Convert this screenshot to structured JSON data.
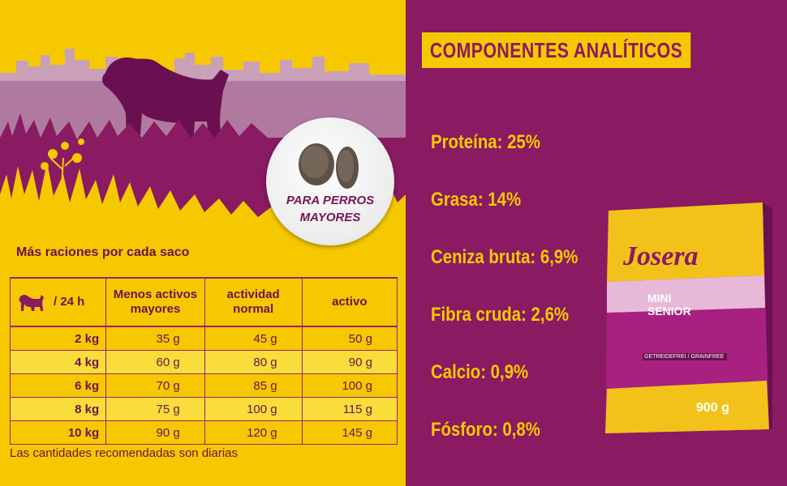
{
  "badge": {
    "line1": "PARA PERROS",
    "line2": "MAYORES"
  },
  "feeding": {
    "title": "Más raciones por cada saco",
    "per_day": "/ 24 h",
    "columns": [
      "Menos activos\nmayores",
      "actividad\nnormal",
      "activo"
    ],
    "rows": [
      {
        "weight": "2 kg",
        "values": [
          "35 g",
          "45 g",
          "50 g"
        ]
      },
      {
        "weight": "4 kg",
        "values": [
          "60 g",
          "80 g",
          "90 g"
        ]
      },
      {
        "weight": "6 kg",
        "values": [
          "70 g",
          "85 g",
          "100 g"
        ]
      },
      {
        "weight": "8 kg",
        "values": [
          "75 g",
          "100 g",
          "115 g"
        ]
      },
      {
        "weight": "10 kg",
        "values": [
          "90 g",
          "120 g",
          "145 g"
        ]
      }
    ],
    "footnote": "Las cantidades recomendadas son diarias"
  },
  "analysis": {
    "title": "COMPONENTES ANALÍTICOS",
    "items": [
      "Proteína: 25%",
      "Grasa: 14%",
      "Ceniza bruta: 6,9%",
      "Fibra cruda: 2,6%",
      "Calcio: 0,9%",
      "Fósforo: 0,8%"
    ]
  },
  "product": {
    "brand": "Josera",
    "name_line1": "MINI",
    "name_line2": "SENIOR",
    "tag": "GETREIDEFREI / GRAINFREE",
    "weight": "900 g"
  },
  "colors": {
    "yellow": "#f6c800",
    "purple": "#8a1a62",
    "dark_purple": "#6d1249"
  }
}
